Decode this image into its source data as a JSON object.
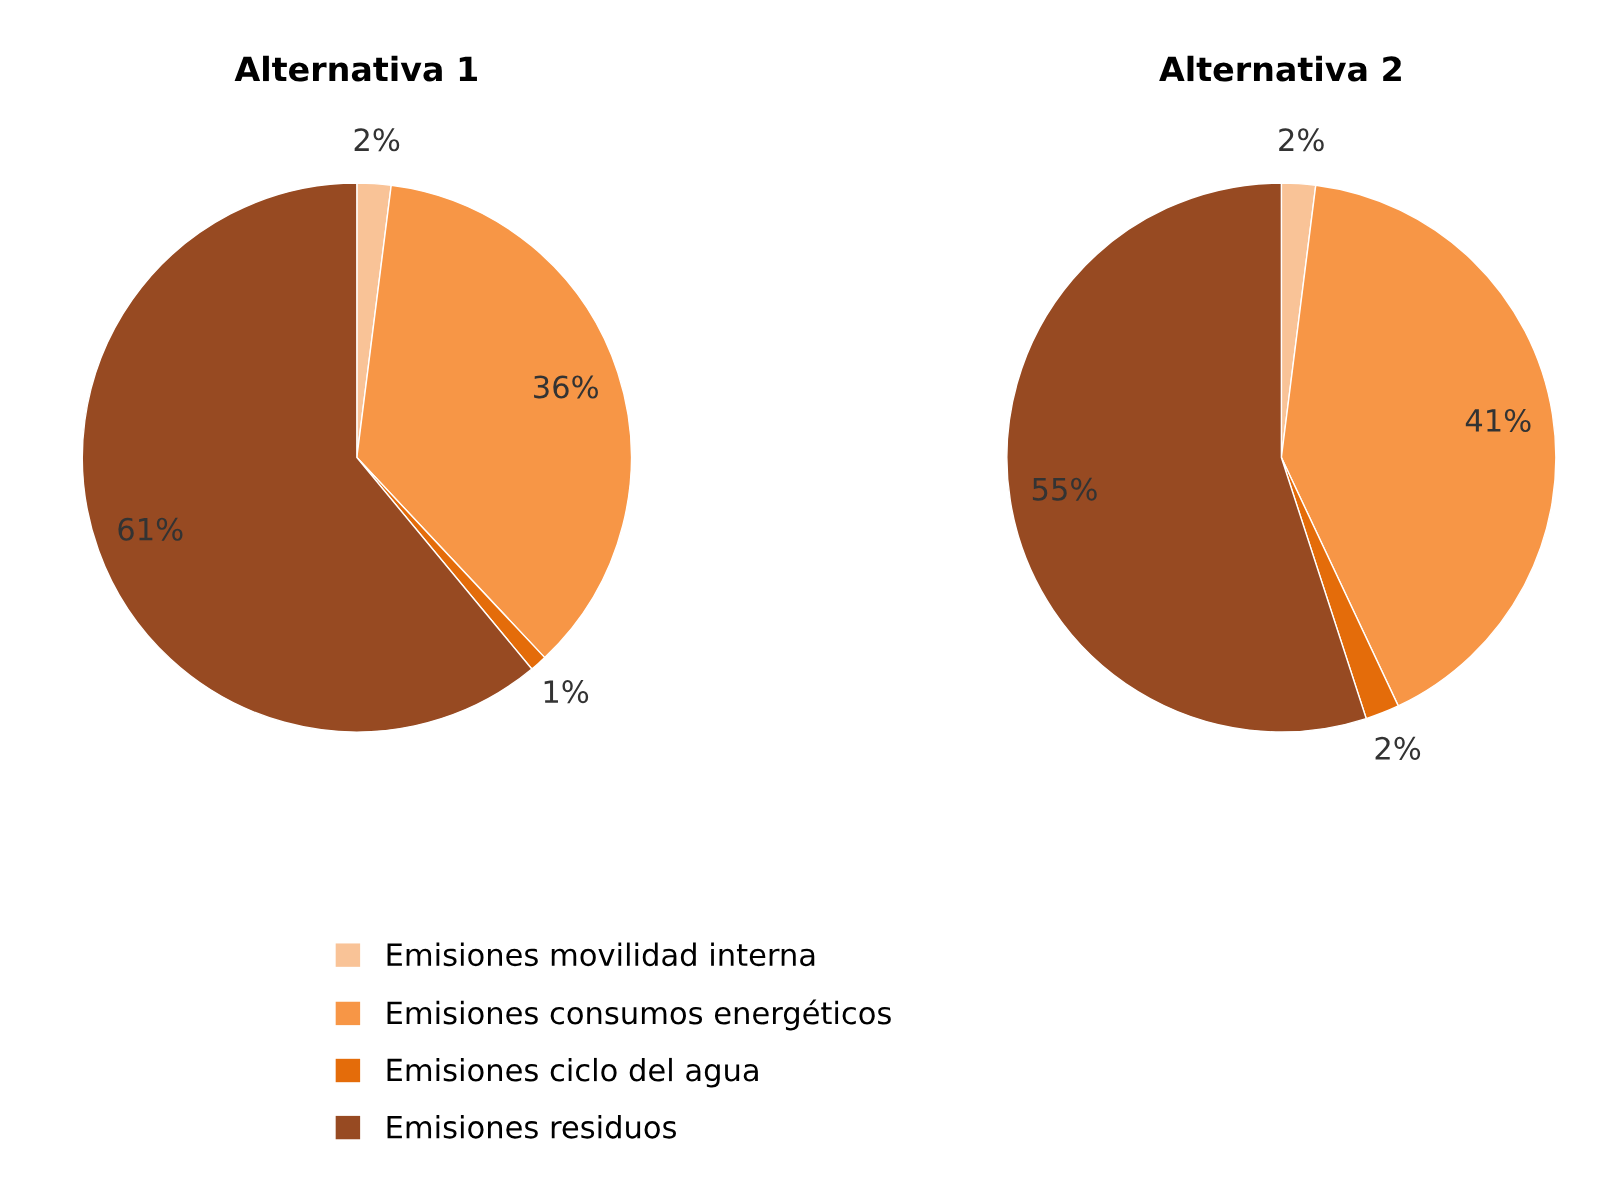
{
  "chart_data": [
    {
      "type": "pie",
      "title": "Alternativa 1",
      "categories": [
        "Emisiones movilidad interna",
        "Emisiones consumos energéticos",
        "Emisiones ciclo del agua",
        "Emisiones residuos"
      ],
      "values": [
        2,
        36,
        1,
        61
      ],
      "colors": [
        "#f9c397",
        "#f79646",
        "#e46c0a",
        "#974a22"
      ],
      "value_labels": [
        "2%",
        "36%",
        "1%",
        "61%"
      ],
      "legend": "bottom"
    },
    {
      "type": "pie",
      "title": "Alternativa 2",
      "categories": [
        null,
        null,
        null,
        null
      ],
      "values": [
        2,
        41,
        2,
        55
      ],
      "colors": [
        "#f9c397",
        "#f79646",
        "#e46c0a",
        "#974a22"
      ],
      "value_labels": [
        "2%",
        "41%",
        "2%",
        "55%"
      ]
    }
  ]
}
